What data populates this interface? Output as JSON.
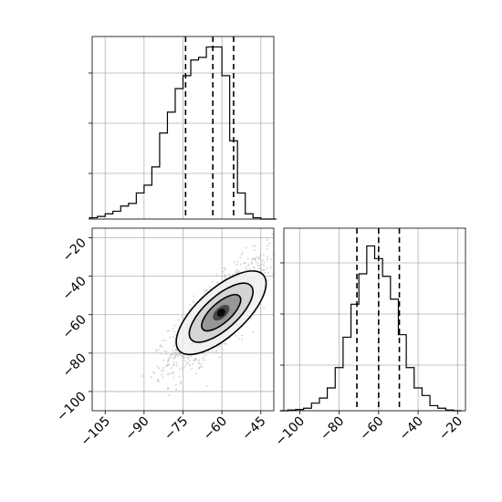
{
  "chart_data": [
    {
      "type": "histogram",
      "panel": "top-left",
      "xlim": [
        -110,
        -40
      ],
      "bin_edges": [
        -111,
        -108,
        -105,
        -102,
        -99,
        -96,
        -93,
        -90,
        -87,
        -84,
        -81,
        -78,
        -75,
        -72,
        -69,
        -66,
        -63,
        -60,
        -57,
        -54,
        -51,
        -48,
        -45,
        -42,
        -39
      ],
      "counts": [
        0.5,
        1,
        2,
        3,
        5,
        6,
        10,
        13,
        20,
        33,
        41,
        50,
        55,
        61,
        62,
        66,
        66,
        55,
        30,
        10,
        2,
        0.5,
        0,
        0
      ],
      "ylim": [
        0,
        70
      ],
      "y_tick_labels_shown": false,
      "quantiles": [
        -74,
        -63.5,
        -55.5
      ],
      "grid": true
    },
    {
      "type": "scatter_density_contour",
      "panel": "bottom-left",
      "xlim": [
        -110,
        -40
      ],
      "ylim": [
        -110,
        -15
      ],
      "x_ticks": [
        -105,
        -90,
        -75,
        -60,
        -45
      ],
      "x_tick_labels": [
        "−105",
        "−90",
        "−75",
        "−60",
        "−45"
      ],
      "y_ticks": [
        -20,
        -40,
        -60,
        -80,
        -100
      ],
      "y_tick_labels": [
        "−20",
        "−40",
        "−60",
        "−80",
        "−100"
      ],
      "center": [
        -61,
        -59
      ],
      "grid": true
    },
    {
      "type": "histogram",
      "panel": "bottom-right",
      "xlim": [
        -108,
        -16
      ],
      "x_ticks": [
        -100,
        -80,
        -60,
        -40,
        -20
      ],
      "x_tick_labels": [
        "−100",
        "−80",
        "−60",
        "−40",
        "−20"
      ],
      "bin_edges": [
        -110,
        -106,
        -102,
        -98,
        -94,
        -90,
        -86,
        -82,
        -78,
        -74,
        -70,
        -66,
        -62,
        -58,
        -54,
        -50,
        -46,
        -42,
        -38,
        -34,
        -30,
        -26,
        -22,
        -18
      ],
      "counts": [
        0,
        0.3,
        0.5,
        1,
        3,
        5,
        9,
        17,
        29,
        42,
        54,
        65,
        60,
        53,
        44,
        30,
        17,
        9,
        6,
        2,
        1,
        0.3,
        0
      ],
      "ylim": [
        0,
        72
      ],
      "y_tick_labels_shown": false,
      "quantiles": [
        -71,
        -60,
        -49.5
      ],
      "grid": true
    }
  ]
}
